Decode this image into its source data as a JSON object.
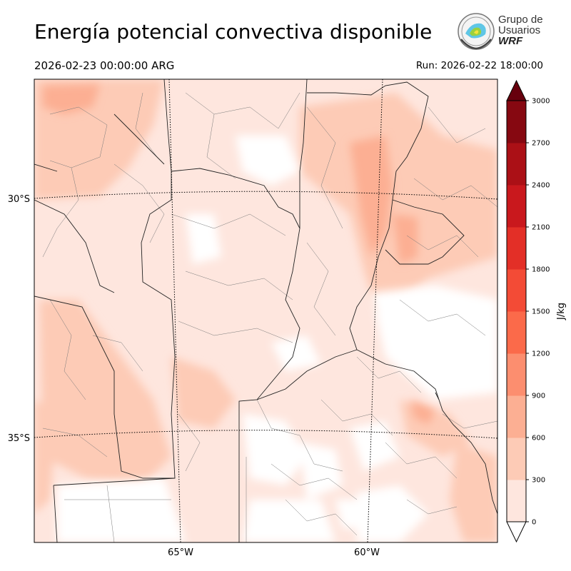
{
  "header": {
    "title": "Energía potencial convectiva disponible",
    "valid_time": "2026-02-23 00:00:00 ARG",
    "run_time": "Run: 2026-02-22 18:00:00"
  },
  "logo": {
    "line1": "Grupo de",
    "line2": "Usuarios",
    "line3": "WRF"
  },
  "axes": {
    "lat_labels": [
      "30°S",
      "35°S"
    ],
    "lon_labels": [
      "65°W",
      "60°W"
    ]
  },
  "colorbar": {
    "unit": "J/kg",
    "ticks": [
      "0",
      "300",
      "600",
      "900",
      "1200",
      "1500",
      "1800",
      "2100",
      "2400",
      "2700",
      "3000"
    ],
    "colors": [
      "#fee6de",
      "#fdcbb6",
      "#fcaf93",
      "#fc8e6f",
      "#fb6a4a",
      "#f34b36",
      "#e32f27",
      "#c9181d",
      "#ab1016",
      "#860811"
    ],
    "under_color": "#ffffff",
    "over_color": "#67000d"
  }
}
